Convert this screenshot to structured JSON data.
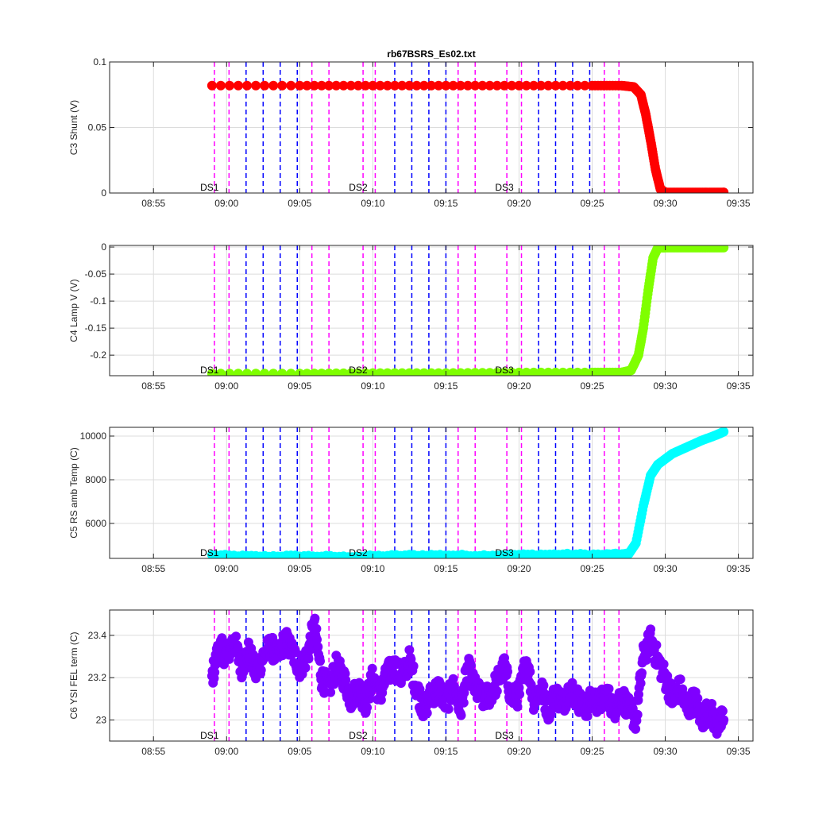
{
  "figure_title": "rb67BSRS_Es02.txt",
  "colors": {
    "marker_lines": "#ff00ff",
    "blue_lines": "#0000ff",
    "grid": "#dcdcdc",
    "axis": "#262626"
  },
  "x_axis": {
    "type": "time",
    "range": [
      "08:52",
      "09:36"
    ],
    "tick_labels": [
      "08:55",
      "09:00",
      "09:05",
      "09:10",
      "09:15",
      "09:20",
      "09:25",
      "09:30",
      "09:35"
    ]
  },
  "annotations": [
    "DS1",
    "DS2",
    "DS3"
  ],
  "chart_data": [
    {
      "type": "scatter",
      "title": "rb67BSRS_Es02.txt",
      "ylabel": "C3 Shunt (V)",
      "ylim": [
        0,
        0.1
      ],
      "yticks": [
        0,
        0.05,
        0.1
      ],
      "ytick_labels": [
        "0",
        "0.05",
        "0.1"
      ],
      "color": "#ff0000",
      "grid": true,
      "annotations": [
        {
          "text": "DS1",
          "x": "08:58:50"
        },
        {
          "text": "DS2",
          "x": "09:09:00"
        },
        {
          "text": "DS3",
          "x": "09:19:00"
        }
      ],
      "magenta_lines": [
        "08:59:10",
        "09:00:10",
        "09:05:50",
        "09:07:00",
        "09:09:20",
        "09:10:10",
        "09:15:50",
        "09:17:00",
        "09:19:10",
        "09:20:10",
        "09:25:50",
        "09:26:50"
      ],
      "blue_lines": [
        "09:01:20",
        "09:02:30",
        "09:03:40",
        "09:04:50",
        "09:11:30",
        "09:12:40",
        "09:13:50",
        "09:15:00",
        "09:21:20",
        "09:22:30",
        "09:23:40",
        "09:24:50"
      ],
      "series": [
        {
          "x": [
            "08:59:00",
            "09:05:00",
            "09:10:00",
            "09:15:00",
            "09:20:00",
            "09:25:00",
            "09:27:00",
            "09:27:50",
            "09:28:20",
            "09:28:40",
            "09:29:00",
            "09:29:20",
            "09:29:40",
            "09:30:00",
            "09:31:00",
            "09:32:00",
            "09:33:00",
            "09:34:00"
          ],
          "y": [
            0.082,
            0.082,
            0.082,
            0.082,
            0.082,
            0.082,
            0.082,
            0.081,
            0.075,
            0.06,
            0.04,
            0.018,
            0.003,
            0.0005,
            0.0005,
            0.0005,
            0.0005,
            0.0005
          ]
        }
      ]
    },
    {
      "type": "scatter",
      "ylabel": "C4 Lamp V (V)",
      "ylim": [
        -0.238,
        0.003
      ],
      "yticks": [
        -0.2,
        -0.15,
        -0.1,
        -0.05,
        0
      ],
      "ytick_labels": [
        "-0.2",
        "-0.15",
        "-0.1",
        "-0.05",
        "0"
      ],
      "color": "#7fff00",
      "grid": true,
      "annotations": [
        {
          "text": "DS1",
          "x": "08:58:50"
        },
        {
          "text": "DS2",
          "x": "09:09:00"
        },
        {
          "text": "DS3",
          "x": "09:19:00"
        }
      ],
      "magenta_lines": [
        "08:59:10",
        "09:00:10",
        "09:05:50",
        "09:07:00",
        "09:09:20",
        "09:10:10",
        "09:15:50",
        "09:17:00",
        "09:19:10",
        "09:20:10",
        "09:25:50",
        "09:26:50"
      ],
      "blue_lines": [
        "09:01:20",
        "09:02:30",
        "09:03:40",
        "09:04:50",
        "09:11:30",
        "09:12:40",
        "09:13:50",
        "09:15:00",
        "09:21:20",
        "09:22:30",
        "09:23:40",
        "09:24:50"
      ],
      "series": [
        {
          "x": [
            "08:59:00",
            "09:05:00",
            "09:10:00",
            "09:15:00",
            "09:20:00",
            "09:25:00",
            "09:27:00",
            "09:27:40",
            "09:28:10",
            "09:28:30",
            "09:28:50",
            "09:29:10",
            "09:29:30",
            "09:30:00",
            "09:31:00",
            "09:32:00",
            "09:33:00",
            "09:34:00"
          ],
          "y": [
            -0.234,
            -0.234,
            -0.233,
            -0.233,
            -0.232,
            -0.232,
            -0.232,
            -0.228,
            -0.2,
            -0.15,
            -0.08,
            -0.02,
            -0.001,
            -0.001,
            -0.001,
            -0.001,
            -0.001,
            -0.001
          ]
        }
      ]
    },
    {
      "type": "scatter",
      "ylabel": "C5 RS amb Temp (C)",
      "ylim": [
        4400,
        10400
      ],
      "yticks": [
        6000,
        8000,
        10000
      ],
      "ytick_labels": [
        "6000",
        "8000",
        "10000"
      ],
      "color": "#00ffff",
      "grid": true,
      "annotations": [
        {
          "text": "DS1",
          "x": "08:58:50"
        },
        {
          "text": "DS2",
          "x": "09:09:00"
        },
        {
          "text": "DS3",
          "x": "09:19:00"
        }
      ],
      "magenta_lines": [
        "08:59:10",
        "09:00:10",
        "09:05:50",
        "09:07:00",
        "09:09:20",
        "09:10:10",
        "09:15:50",
        "09:17:00",
        "09:19:10",
        "09:20:10",
        "09:25:50",
        "09:26:50"
      ],
      "blue_lines": [
        "09:01:20",
        "09:02:30",
        "09:03:40",
        "09:04:50",
        "09:11:30",
        "09:12:40",
        "09:13:50",
        "09:15:00",
        "09:21:20",
        "09:22:30",
        "09:23:40",
        "09:24:50"
      ],
      "series": [
        {
          "x": [
            "08:59:00",
            "09:02:00",
            "09:05:00",
            "09:08:00",
            "09:11:00",
            "09:14:00",
            "09:17:00",
            "09:20:00",
            "09:23:00",
            "09:26:00",
            "09:27:30",
            "09:28:00",
            "09:28:30",
            "09:29:00",
            "09:29:30",
            "09:30:30",
            "09:31:30",
            "09:32:30",
            "09:33:30",
            "09:34:00"
          ],
          "y": [
            4550,
            4500,
            4520,
            4480,
            4530,
            4560,
            4540,
            4570,
            4590,
            4580,
            4600,
            5100,
            6800,
            8200,
            8700,
            9200,
            9500,
            9800,
            10050,
            10200
          ]
        }
      ]
    },
    {
      "type": "scatter",
      "ylabel": "C6 YSI FEL term (C)",
      "ylim": [
        22.9,
        23.52
      ],
      "yticks": [
        23,
        23.2,
        23.4
      ],
      "ytick_labels": [
        "23",
        "23.2",
        "23.4"
      ],
      "color": "#7f00ff",
      "grid": true,
      "annotations": [
        {
          "text": "DS1",
          "x": "08:58:50"
        },
        {
          "text": "DS2",
          "x": "09:09:00"
        },
        {
          "text": "DS3",
          "x": "09:19:00"
        }
      ],
      "magenta_lines": [
        "08:59:10",
        "09:00:10",
        "09:05:50",
        "09:07:00",
        "09:09:20",
        "09:10:10",
        "09:15:50",
        "09:17:00",
        "09:19:10",
        "09:20:10",
        "09:25:50",
        "09:26:50"
      ],
      "blue_lines": [
        "09:01:20",
        "09:02:30",
        "09:03:40",
        "09:04:50",
        "09:11:30",
        "09:12:40",
        "09:13:50",
        "09:15:00",
        "09:21:20",
        "09:22:30",
        "09:23:40",
        "09:24:50"
      ],
      "series": [
        {
          "x": [
            "08:59:00",
            "08:59:30",
            "09:00:00",
            "09:00:30",
            "09:01:00",
            "09:01:30",
            "09:02:00",
            "09:02:30",
            "09:03:00",
            "09:03:30",
            "09:04:00",
            "09:04:30",
            "09:05:00",
            "09:05:30",
            "09:06:00",
            "09:06:30",
            "09:07:00",
            "09:07:30",
            "09:08:00",
            "09:08:30",
            "09:09:00",
            "09:09:30",
            "09:10:00",
            "09:10:30",
            "09:11:00",
            "09:11:30",
            "09:12:00",
            "09:12:30",
            "09:13:00",
            "09:13:30",
            "09:14:00",
            "09:14:30",
            "09:15:00",
            "09:15:30",
            "09:16:00",
            "09:16:30",
            "09:17:00",
            "09:17:30",
            "09:18:00",
            "09:18:30",
            "09:19:00",
            "09:19:30",
            "09:20:00",
            "09:20:30",
            "09:21:00",
            "09:21:30",
            "09:22:00",
            "09:22:30",
            "09:23:00",
            "09:23:30",
            "09:24:00",
            "09:24:30",
            "09:25:00",
            "09:25:30",
            "09:26:00",
            "09:26:30",
            "09:27:00",
            "09:27:30",
            "09:28:00",
            "09:28:30",
            "09:29:00",
            "09:29:30",
            "09:30:00",
            "09:30:30",
            "09:31:00",
            "09:31:30",
            "09:32:00",
            "09:32:30",
            "09:33:00",
            "09:33:30",
            "09:34:00"
          ],
          "y": [
            23.2,
            23.35,
            23.3,
            23.38,
            23.25,
            23.32,
            23.22,
            23.3,
            23.35,
            23.3,
            23.38,
            23.32,
            23.25,
            23.3,
            23.45,
            23.2,
            23.15,
            23.25,
            23.2,
            23.1,
            23.15,
            23.08,
            23.2,
            23.12,
            23.22,
            23.25,
            23.2,
            23.28,
            23.15,
            23.05,
            23.12,
            23.15,
            23.08,
            23.15,
            23.05,
            23.25,
            23.15,
            23.1,
            23.12,
            23.18,
            23.25,
            23.1,
            23.12,
            23.28,
            23.1,
            23.15,
            23.05,
            23.12,
            23.08,
            23.15,
            23.1,
            23.05,
            23.1,
            23.08,
            23.12,
            23.05,
            23.12,
            23.05,
            23.0,
            23.3,
            23.38,
            23.28,
            23.2,
            23.1,
            23.15,
            23.05,
            23.1,
            23.0,
            23.05,
            22.98,
            23.0
          ]
        }
      ]
    }
  ]
}
